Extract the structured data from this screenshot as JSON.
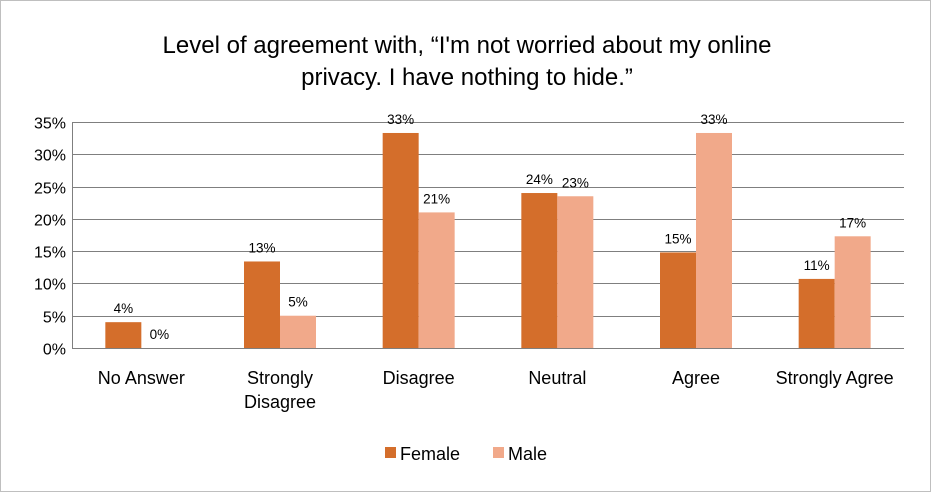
{
  "chart_data": {
    "type": "bar",
    "title_lines": [
      "Level of agreement with, “I'm not worried about my online",
      "privacy. I have nothing to hide.”"
    ],
    "categories": [
      [
        "No Answer"
      ],
      [
        "Strongly",
        "Disagree"
      ],
      [
        "Disagree"
      ],
      [
        "Neutral"
      ],
      [
        "Agree"
      ],
      [
        "Strongly Agree"
      ]
    ],
    "series": [
      {
        "name": "Female",
        "color": "#d46e2b",
        "values": [
          4,
          13,
          33,
          24,
          15,
          11
        ],
        "labels": [
          "4%",
          "13%",
          "33%",
          "24%",
          "15%",
          "11%"
        ],
        "heights": [
          4.0,
          13.4,
          33.3,
          24.0,
          14.8,
          10.7
        ]
      },
      {
        "name": "Male",
        "color": "#f1a98a",
        "values": [
          0,
          5,
          21,
          23,
          33,
          17
        ],
        "labels": [
          "0%",
          "5%",
          "21%",
          "23%",
          "33%",
          "17%"
        ],
        "heights": [
          0.0,
          5.0,
          21.0,
          23.5,
          33.3,
          17.3
        ]
      }
    ],
    "yticks": [
      "0%",
      "5%",
      "10%",
      "15%",
      "20%",
      "25%",
      "30%",
      "35%"
    ],
    "ylim": [
      0,
      35
    ],
    "grid": true,
    "gridColor": "#7f7f7f",
    "legend": "bottom"
  }
}
